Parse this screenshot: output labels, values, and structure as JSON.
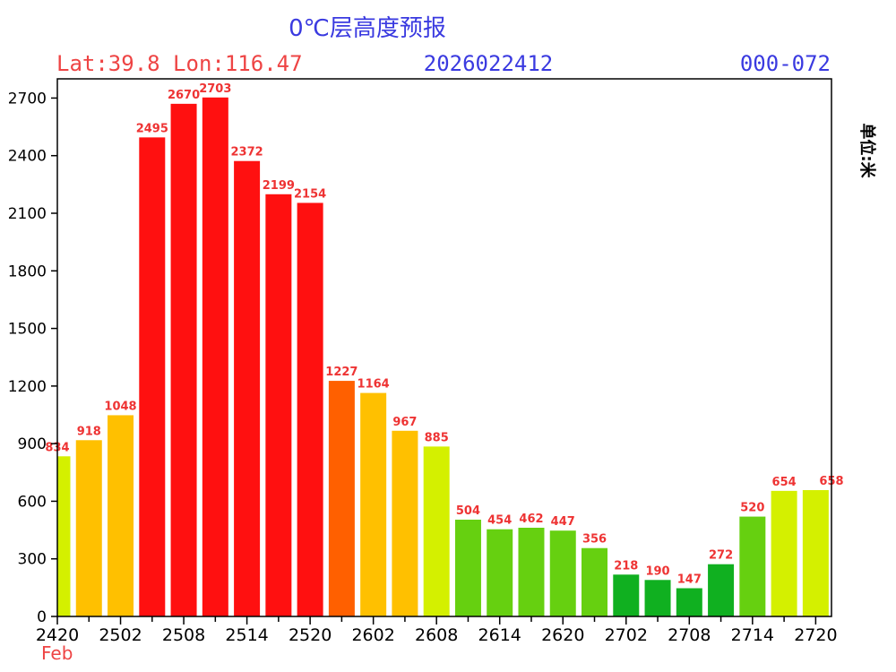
{
  "chart_data": {
    "type": "bar",
    "title": "0℃层高度预报",
    "location": "Lat:39.8 Lon:116.47",
    "init_time": "2026022412",
    "forecast_range": "000-072",
    "unit": "单位:米",
    "month_label": "Feb",
    "ylim": [
      0,
      2800
    ],
    "yticks": [
      0,
      300,
      600,
      900,
      1200,
      1500,
      1800,
      2100,
      2400,
      2700
    ],
    "xtick_labels": [
      "2420",
      "2502",
      "2508",
      "2514",
      "2520",
      "2602",
      "2608",
      "2614",
      "2620",
      "2702",
      "2708",
      "2714",
      "2720"
    ],
    "values": [
      834,
      918,
      1048,
      2495,
      2670,
      2703,
      2372,
      2199,
      2154,
      1227,
      1164,
      967,
      885,
      504,
      454,
      462,
      447,
      356,
      218,
      190,
      147,
      272,
      520,
      654,
      658
    ],
    "colors": [
      "#d4f000",
      "#ffc000",
      "#ffc000",
      "#ff1010",
      "#ff1010",
      "#ff1010",
      "#ff1010",
      "#ff1010",
      "#ff1010",
      "#ff6000",
      "#ffc000",
      "#ffc000",
      "#d4f000",
      "#66d010",
      "#66d010",
      "#66d010",
      "#66d010",
      "#66d010",
      "#10b020",
      "#10b020",
      "#10b020",
      "#10b020",
      "#66d010",
      "#d4f000",
      "#d4f000"
    ]
  }
}
